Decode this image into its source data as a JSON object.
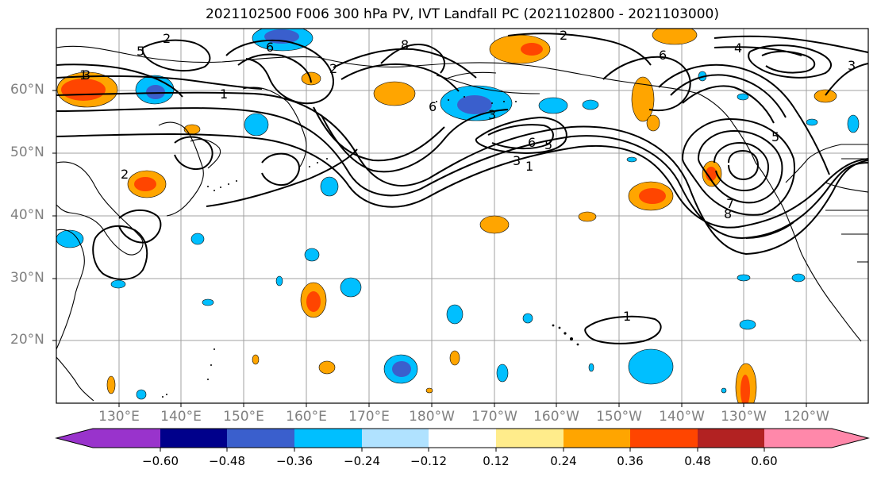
{
  "title": "2021102500 F006 300 hPa PV, IVT Landfall PC (2021102800 - 2021103000)",
  "lat_labels": [
    "60°N",
    "50°N",
    "40°N",
    "30°N",
    "20°N"
  ],
  "lon_labels": [
    "130°E",
    "140°E",
    "150°E",
    "160°E",
    "170°E",
    "180°W",
    "170°W",
    "160°W",
    "150°W",
    "140°W",
    "130°W",
    "120°W"
  ],
  "colorbar": {
    "tick_labels": [
      "−0.60",
      "−0.48",
      "−0.36",
      "−0.24",
      "−0.12",
      "0.12",
      "0.24",
      "0.36",
      "0.48",
      "0.60"
    ],
    "colors": [
      "#9933cc",
      "#00008b",
      "#3a5fcd",
      "#00bfff",
      "#b0e2ff",
      "#ffffff",
      "#ffec8b",
      "#ffa500",
      "#ff4500",
      "#b22222",
      "#ff88aa"
    ]
  },
  "contour_labels": [
    "1",
    "2",
    "3",
    "5",
    "6",
    "8",
    "6",
    "3",
    "1",
    "5",
    "1",
    "2",
    "3",
    "4",
    "3",
    "6",
    "5",
    "1",
    "2",
    "6",
    "8",
    "7",
    "2"
  ]
}
